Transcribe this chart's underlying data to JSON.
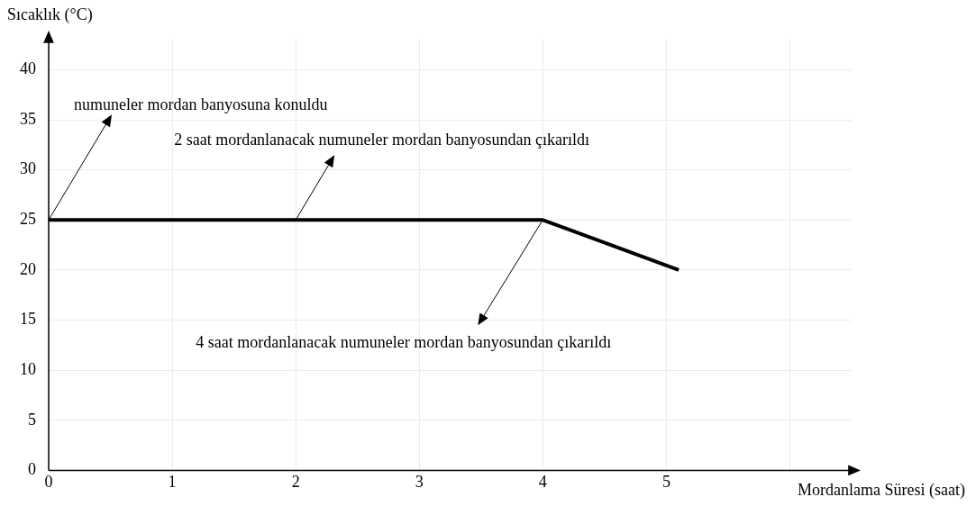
{
  "chart_data": {
    "type": "line",
    "xlabel": "Mordanlama Süresi (saat)",
    "ylabel": "Sıcaklık (°C)",
    "x": [
      0,
      2,
      4,
      5.1
    ],
    "series": [
      {
        "color": "#000000",
        "values": [
          25,
          25,
          25,
          20
        ]
      }
    ],
    "xlim": [
      0,
      6.5
    ],
    "xticks": [
      0,
      1,
      2,
      3,
      4,
      5,
      {
        "value": 6,
        "label": null
      }
    ],
    "ylim": [
      0,
      43
    ],
    "yticks": [
      0,
      5,
      10,
      15,
      20,
      25,
      30,
      35,
      40
    ],
    "grid": true,
    "legend": false,
    "marker": "none",
    "line_style": "solid",
    "annotations": [
      {
        "text": "numuneler mordan banyosuna konuldu",
        "x": 0,
        "y": 25
      },
      {
        "text": "2 saat mordanlanacak numuneler mordan banyosundan çıkarıldı",
        "x": 2,
        "y": 25
      },
      {
        "text": "4 saat mordanlanacak numuneler mordan banyosundan çıkarıldı",
        "x": 4,
        "y": 25
      }
    ]
  }
}
